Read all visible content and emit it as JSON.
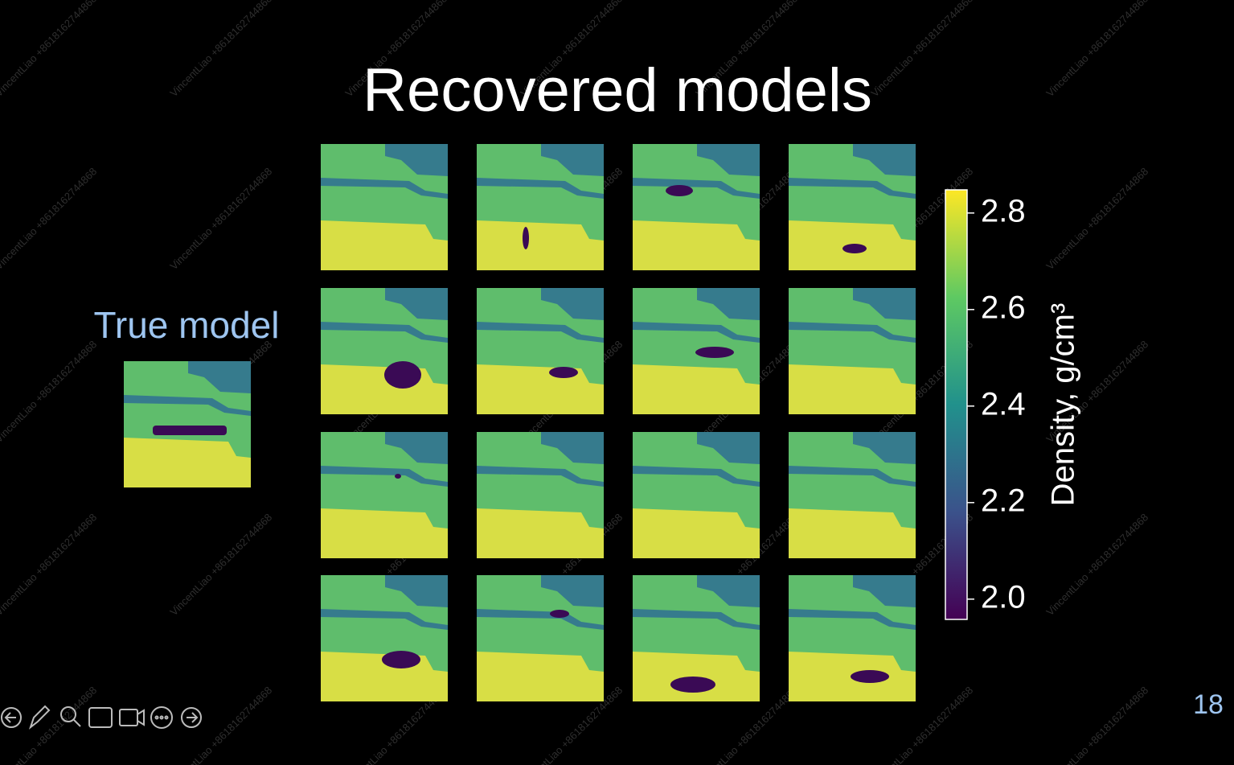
{
  "slide": {
    "title": "Recovered models",
    "true_model_label": "True model",
    "page_number": "18",
    "watermark": "VincentLiao +8618162744868",
    "colorbar": {
      "label": "Density, g/cm³",
      "lim": [
        1.958,
        2.848
      ],
      "ticks": [
        {
          "value": 2.0,
          "label": "2.0"
        },
        {
          "value": 2.2,
          "label": "2.2"
        },
        {
          "value": 2.4,
          "label": "2.4"
        },
        {
          "value": 2.6,
          "label": "2.6"
        },
        {
          "value": 2.8,
          "label": "2.8"
        }
      ]
    }
  }
}
